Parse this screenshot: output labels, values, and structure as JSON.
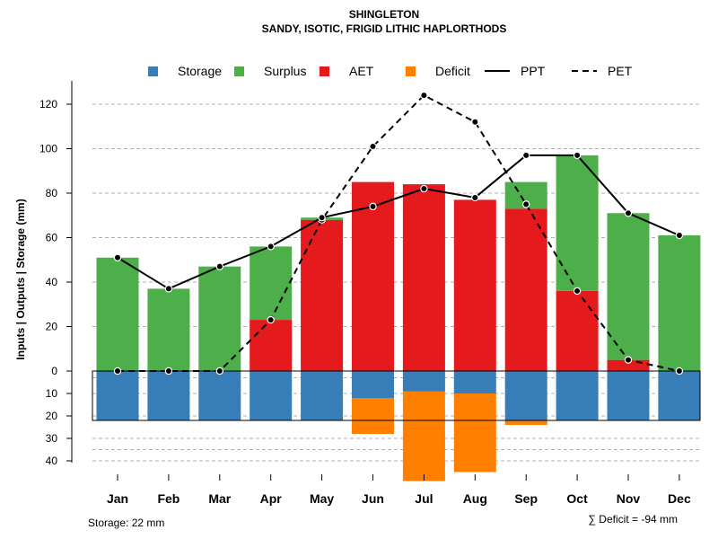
{
  "chart_data": {
    "type": "bar",
    "title": "SHINGLETON",
    "subtitle": "SANDY, ISOTIC, FRIGID LITHIC HAPLORTHODS",
    "ylabel": "Inputs | Outputs | Storage    (mm)",
    "categories": [
      "Jan",
      "Feb",
      "Mar",
      "Apr",
      "May",
      "Jun",
      "Jul",
      "Aug",
      "Sep",
      "Oct",
      "Nov",
      "Dec"
    ],
    "upper_ticks": [
      "0",
      "20",
      "40",
      "60",
      "80",
      "100",
      "120"
    ],
    "lower_ticks": [
      "10",
      "20",
      "30",
      "40"
    ],
    "ylim_upper": [
      0,
      130
    ],
    "ylim_lower": [
      0,
      45
    ],
    "series": [
      {
        "name": "Storage",
        "color": "#377EB8",
        "values": [
          22,
          22,
          22,
          22,
          22,
          12,
          9,
          10,
          22,
          22,
          22,
          22
        ]
      },
      {
        "name": "Surplus",
        "color": "#4DAF4A",
        "values": [
          51,
          37,
          47,
          33,
          1,
          0,
          0,
          0,
          12,
          61,
          66,
          61
        ]
      },
      {
        "name": "AET",
        "color": "#E41A1C",
        "values": [
          0,
          0,
          0,
          23,
          68,
          85,
          84,
          77,
          73,
          36,
          5,
          0
        ]
      },
      {
        "name": "Deficit",
        "color": "#FF7F00",
        "values": [
          0,
          0,
          0,
          0,
          0,
          16,
          40,
          35,
          2,
          0,
          0,
          0
        ]
      },
      {
        "name": "PPT",
        "values": [
          51,
          37,
          47,
          56,
          69,
          74,
          82,
          78,
          97,
          97,
          71,
          61
        ]
      },
      {
        "name": "PET",
        "values": [
          0,
          0,
          0,
          23,
          68,
          101,
          124,
          112,
          75,
          36,
          5,
          0
        ]
      }
    ],
    "legend": {
      "position": "top",
      "entries": [
        {
          "label": "Storage",
          "kind": "box",
          "color": "#377EB8"
        },
        {
          "label": "Surplus",
          "kind": "box",
          "color": "#4DAF4A"
        },
        {
          "label": "AET",
          "kind": "box",
          "color": "#E41A1C"
        },
        {
          "label": "Deficit",
          "kind": "box",
          "color": "#FF7F00"
        },
        {
          "label": "PPT",
          "kind": "solid-line"
        },
        {
          "label": "PET",
          "kind": "dashed-line"
        }
      ]
    },
    "storage_capacity": 22,
    "storage_note": "Storage: 22 mm",
    "deficit_note": "∑ Deficit = -94 mm"
  }
}
